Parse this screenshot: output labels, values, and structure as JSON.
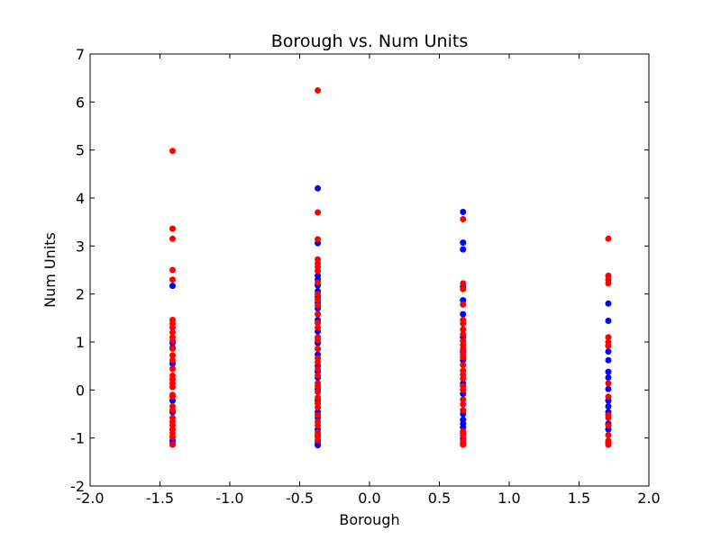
{
  "chart_data": {
    "type": "scatter",
    "title": "Borough vs. Num Units",
    "xlabel": "Borough",
    "ylabel": "Num Units",
    "xlim": [
      -2.0,
      2.0
    ],
    "ylim": [
      -2,
      7
    ],
    "xticks": [
      "-2.0",
      "-1.5",
      "-1.0",
      "-0.5",
      "0.0",
      "0.5",
      "1.0",
      "1.5",
      "2.0"
    ],
    "yticks": [
      "-2",
      "-1",
      "0",
      "1",
      "2",
      "3",
      "4",
      "5",
      "6",
      "7"
    ],
    "grid": false,
    "series": [
      {
        "color": "#0000ff",
        "points": [
          [
            -1.41,
            2.17
          ],
          [
            -1.41,
            0.98
          ],
          [
            -1.41,
            0.88
          ],
          [
            -1.41,
            0.55
          ],
          [
            -1.41,
            -0.22
          ],
          [
            -1.41,
            -0.46
          ],
          [
            -1.41,
            -1.05
          ],
          [
            -1.41,
            -1.1
          ],
          [
            -0.37,
            4.2
          ],
          [
            -0.37,
            3.06
          ],
          [
            -0.37,
            2.38
          ],
          [
            -0.37,
            2.3
          ],
          [
            -0.37,
            2.18
          ],
          [
            -0.37,
            2.06
          ],
          [
            -0.37,
            1.94
          ],
          [
            -0.37,
            1.82
          ],
          [
            -0.37,
            1.7
          ],
          [
            -0.37,
            1.46
          ],
          [
            -0.37,
            1.22
          ],
          [
            -0.37,
            0.98
          ],
          [
            -0.37,
            0.74
          ],
          [
            -0.37,
            0.5
          ],
          [
            -0.37,
            0.38
          ],
          [
            -0.37,
            0.26
          ],
          [
            -0.37,
            0.02
          ],
          [
            -0.37,
            -0.22
          ],
          [
            -0.37,
            -0.46
          ],
          [
            -0.37,
            -0.58
          ],
          [
            -0.37,
            -0.82
          ],
          [
            -0.37,
            -0.94
          ],
          [
            -0.37,
            -1.06
          ],
          [
            -0.37,
            -1.12
          ],
          [
            -0.37,
            -1.15
          ],
          [
            0.67,
            3.71
          ],
          [
            0.67,
            3.07
          ],
          [
            0.67,
            2.93
          ],
          [
            0.67,
            2.15
          ],
          [
            0.67,
            1.87
          ],
          [
            0.67,
            1.58
          ],
          [
            0.67,
            1.1
          ],
          [
            0.67,
            0.8
          ],
          [
            0.67,
            0.62
          ],
          [
            0.67,
            0.14
          ],
          [
            0.67,
            -0.08
          ],
          [
            0.67,
            -0.5
          ],
          [
            0.67,
            -0.62
          ],
          [
            0.67,
            -0.7
          ],
          [
            0.67,
            -0.78
          ],
          [
            0.67,
            -0.9
          ],
          [
            0.67,
            -1.02
          ],
          [
            1.71,
            1.8
          ],
          [
            1.71,
            1.44
          ],
          [
            1.71,
            0.92
          ],
          [
            1.71,
            0.8
          ],
          [
            1.71,
            0.62
          ],
          [
            1.71,
            0.38
          ],
          [
            1.71,
            0.26
          ],
          [
            1.71,
            0.02
          ],
          [
            1.71,
            -0.22
          ],
          [
            1.71,
            -0.34
          ],
          [
            1.71,
            -0.46
          ],
          [
            1.71,
            -0.7
          ],
          [
            1.71,
            -0.82
          ]
        ]
      },
      {
        "color": "#ff0000",
        "points": [
          [
            -1.41,
            4.98
          ],
          [
            -1.41,
            3.36
          ],
          [
            -1.41,
            3.15
          ],
          [
            -1.41,
            2.5
          ],
          [
            -1.41,
            2.3
          ],
          [
            -1.41,
            1.46
          ],
          [
            -1.41,
            1.38
          ],
          [
            -1.41,
            1.3
          ],
          [
            -1.41,
            1.2
          ],
          [
            -1.41,
            1.1
          ],
          [
            -1.41,
            1.02
          ],
          [
            -1.41,
            0.86
          ],
          [
            -1.41,
            0.72
          ],
          [
            -1.41,
            0.62
          ],
          [
            -1.41,
            0.44
          ],
          [
            -1.41,
            0.3
          ],
          [
            -1.41,
            0.22
          ],
          [
            -1.41,
            0.14
          ],
          [
            -1.41,
            0.06
          ],
          [
            -1.41,
            -0.1
          ],
          [
            -1.41,
            -0.14
          ],
          [
            -1.41,
            -0.34
          ],
          [
            -1.41,
            -0.42
          ],
          [
            -1.41,
            -0.58
          ],
          [
            -1.41,
            -0.66
          ],
          [
            -1.41,
            -0.74
          ],
          [
            -1.41,
            -0.82
          ],
          [
            -1.41,
            -0.9
          ],
          [
            -1.41,
            -0.98
          ],
          [
            -1.41,
            -1.14
          ],
          [
            -0.37,
            6.24
          ],
          [
            -0.37,
            3.7
          ],
          [
            -0.37,
            3.14
          ],
          [
            -0.37,
            2.72
          ],
          [
            -0.37,
            2.64
          ],
          [
            -0.37,
            2.56
          ],
          [
            -0.37,
            2.48
          ],
          [
            -0.37,
            2.24
          ],
          [
            -0.37,
            2.0
          ],
          [
            -0.37,
            1.88
          ],
          [
            -0.37,
            1.76
          ],
          [
            -0.37,
            1.58
          ],
          [
            -0.37,
            1.4
          ],
          [
            -0.37,
            1.3
          ],
          [
            -0.37,
            1.1
          ],
          [
            -0.37,
            1.04
          ],
          [
            -0.37,
            0.86
          ],
          [
            -0.37,
            0.66
          ],
          [
            -0.37,
            0.58
          ],
          [
            -0.37,
            0.44
          ],
          [
            -0.37,
            0.3
          ],
          [
            -0.37,
            0.14
          ],
          [
            -0.37,
            0.08
          ],
          [
            -0.37,
            -0.04
          ],
          [
            -0.37,
            -0.16
          ],
          [
            -0.37,
            -0.28
          ],
          [
            -0.37,
            -0.36
          ],
          [
            -0.37,
            -0.52
          ],
          [
            -0.37,
            -0.66
          ],
          [
            -0.37,
            -0.74
          ],
          [
            -0.37,
            -0.88
          ],
          [
            -0.37,
            -0.98
          ],
          [
            -0.37,
            -1.05
          ],
          [
            0.67,
            3.56
          ],
          [
            0.67,
            2.22
          ],
          [
            0.67,
            2.1
          ],
          [
            0.67,
            1.78
          ],
          [
            0.67,
            1.46
          ],
          [
            0.67,
            1.38
          ],
          [
            0.67,
            1.26
          ],
          [
            0.67,
            1.16
          ],
          [
            0.67,
            1.02
          ],
          [
            0.67,
            0.94
          ],
          [
            0.67,
            0.86
          ],
          [
            0.67,
            0.74
          ],
          [
            0.67,
            0.68
          ],
          [
            0.67,
            0.52
          ],
          [
            0.67,
            0.4
          ],
          [
            0.67,
            0.32
          ],
          [
            0.67,
            0.24
          ],
          [
            0.67,
            0.08
          ],
          [
            0.67,
            0.0
          ],
          [
            0.67,
            -0.2
          ],
          [
            0.67,
            -0.3
          ],
          [
            0.67,
            -0.42
          ],
          [
            0.67,
            -0.86
          ],
          [
            0.67,
            -0.94
          ],
          [
            0.67,
            -1.06
          ],
          [
            0.67,
            -1.1
          ],
          [
            0.67,
            -1.14
          ],
          [
            1.71,
            3.15
          ],
          [
            1.71,
            2.38
          ],
          [
            1.71,
            2.3
          ],
          [
            1.71,
            2.22
          ],
          [
            1.71,
            1.1
          ],
          [
            1.71,
            1.0
          ],
          [
            1.71,
            0.92
          ],
          [
            1.71,
            0.14
          ],
          [
            1.71,
            -0.14
          ],
          [
            1.71,
            -0.52
          ],
          [
            1.71,
            -0.58
          ],
          [
            1.71,
            -0.74
          ],
          [
            1.71,
            -0.94
          ],
          [
            1.71,
            -1.06
          ],
          [
            1.71,
            -1.1
          ],
          [
            1.71,
            -1.14
          ]
        ]
      }
    ]
  }
}
